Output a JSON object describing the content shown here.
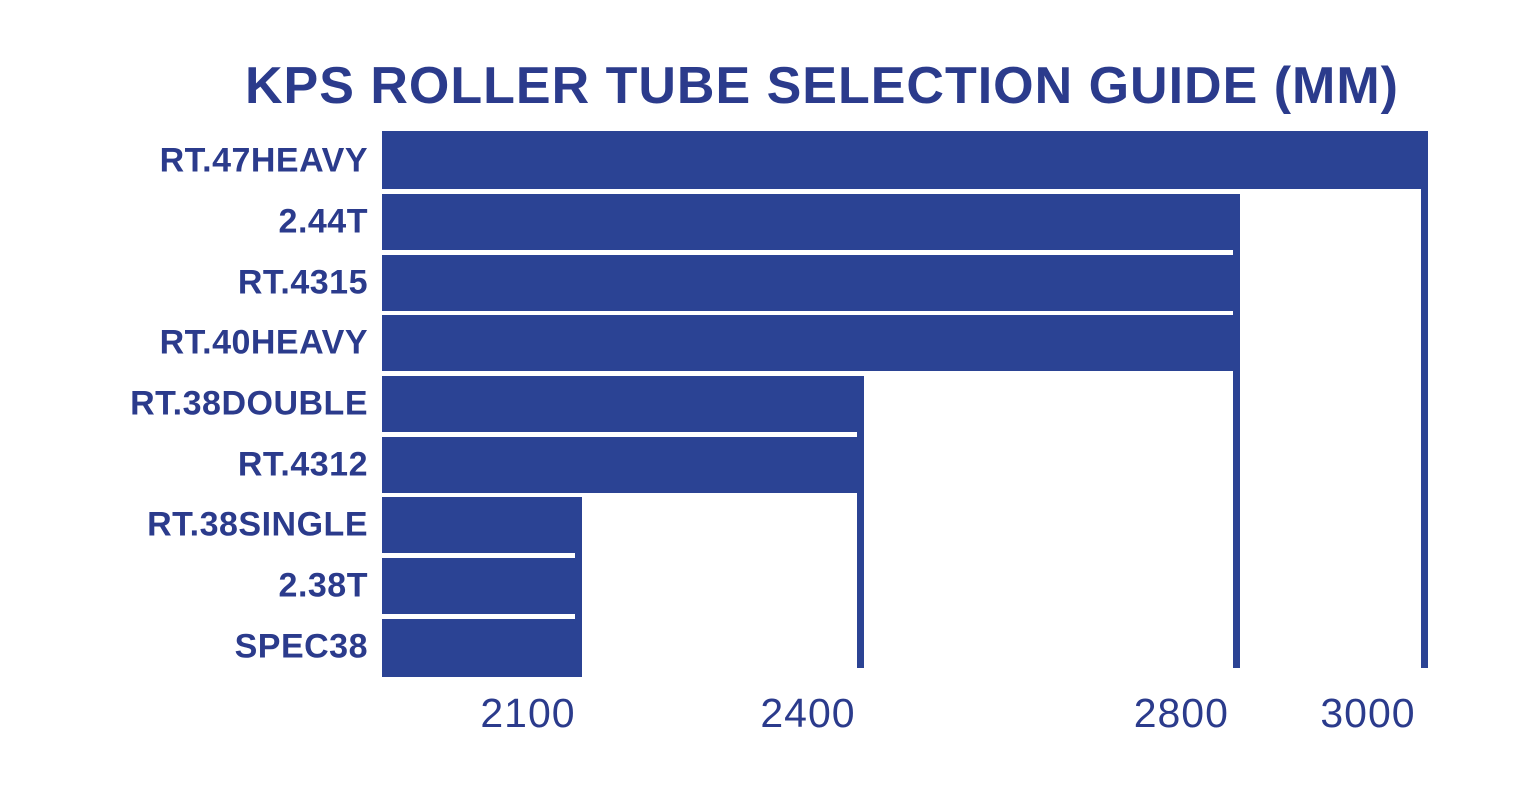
{
  "colors": {
    "bar_fill": "#2b4394",
    "text_navy": "#2b3b8c",
    "background": "#ffffff"
  },
  "chart": {
    "title": "KPS ROLLER TUBE SELECTION GUIDE (MM)"
  },
  "chart_data": {
    "type": "bar",
    "orientation": "horizontal",
    "title": "KPS ROLLER TUBE SELECTION GUIDE (MM)",
    "unit": "mm",
    "categories": [
      "RT.47HEAVY",
      "2.44T",
      "RT.4315",
      "RT.40HEAVY",
      "RT.38DOUBLE",
      "RT.4312",
      "RT.38SINGLE",
      "2.38T",
      "SPEC38"
    ],
    "values": [
      3000,
      2800,
      2800,
      2800,
      2400,
      2400,
      2100,
      2100,
      2100
    ],
    "x_ticks": [
      2100,
      2400,
      2800,
      3000
    ],
    "xlim": [
      1950,
      3085
    ],
    "xlabel": "",
    "ylabel": "",
    "grid": false,
    "legend": false
  }
}
